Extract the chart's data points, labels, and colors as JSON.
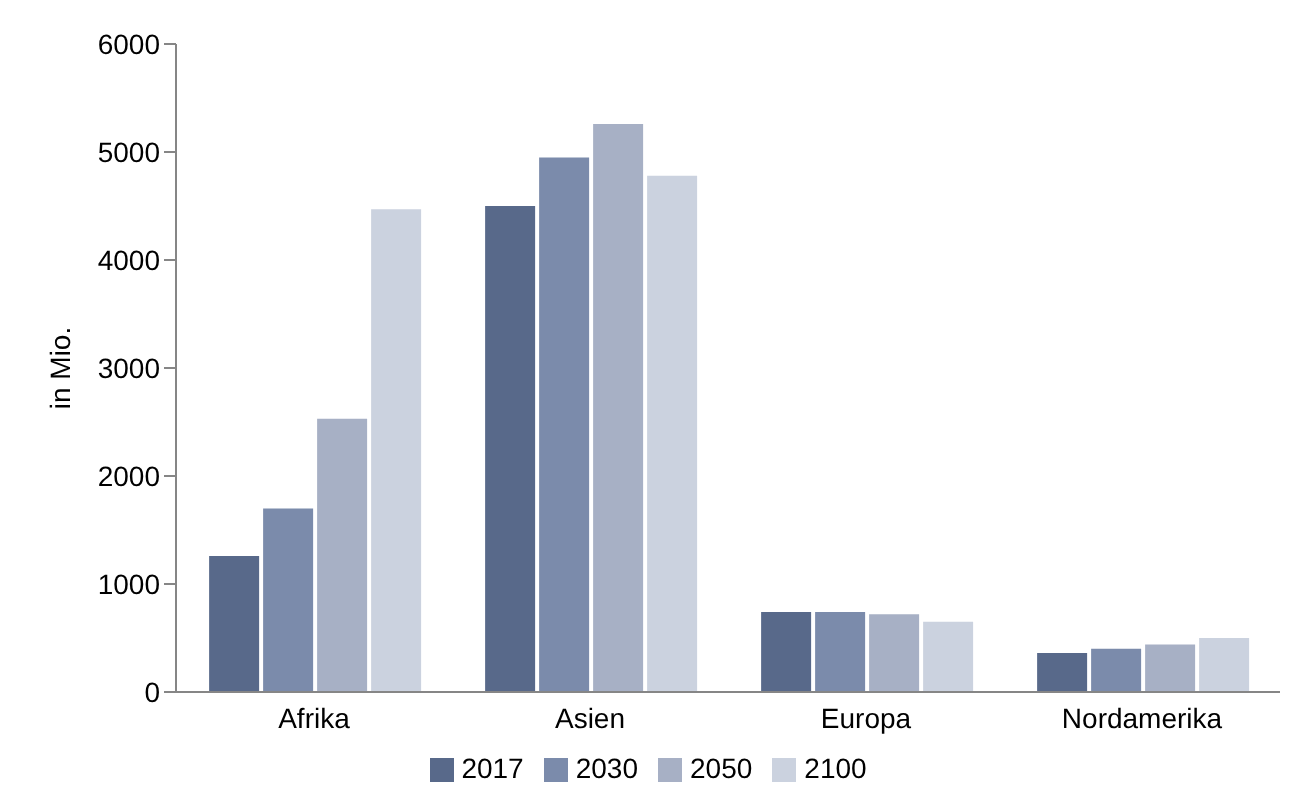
{
  "chart_data": {
    "type": "bar",
    "ylabel": "in Mio.",
    "categories": [
      "Afrika",
      "Asien",
      "Europa",
      "Nordamerika"
    ],
    "series": [
      {
        "name": "2017",
        "color": "#58698a",
        "values": [
          1260,
          4500,
          740,
          360
        ]
      },
      {
        "name": "2030",
        "color": "#7b8bab",
        "values": [
          1700,
          4950,
          740,
          400
        ]
      },
      {
        "name": "2050",
        "color": "#a7b0c5",
        "values": [
          2530,
          5260,
          720,
          440
        ]
      },
      {
        "name": "2100",
        "color": "#cbd2df",
        "values": [
          4470,
          4780,
          650,
          500
        ]
      }
    ],
    "ylim": [
      0,
      6000
    ],
    "yticks": [
      0,
      1000,
      2000,
      3000,
      4000,
      5000,
      6000
    ],
    "legend": "bottom"
  }
}
